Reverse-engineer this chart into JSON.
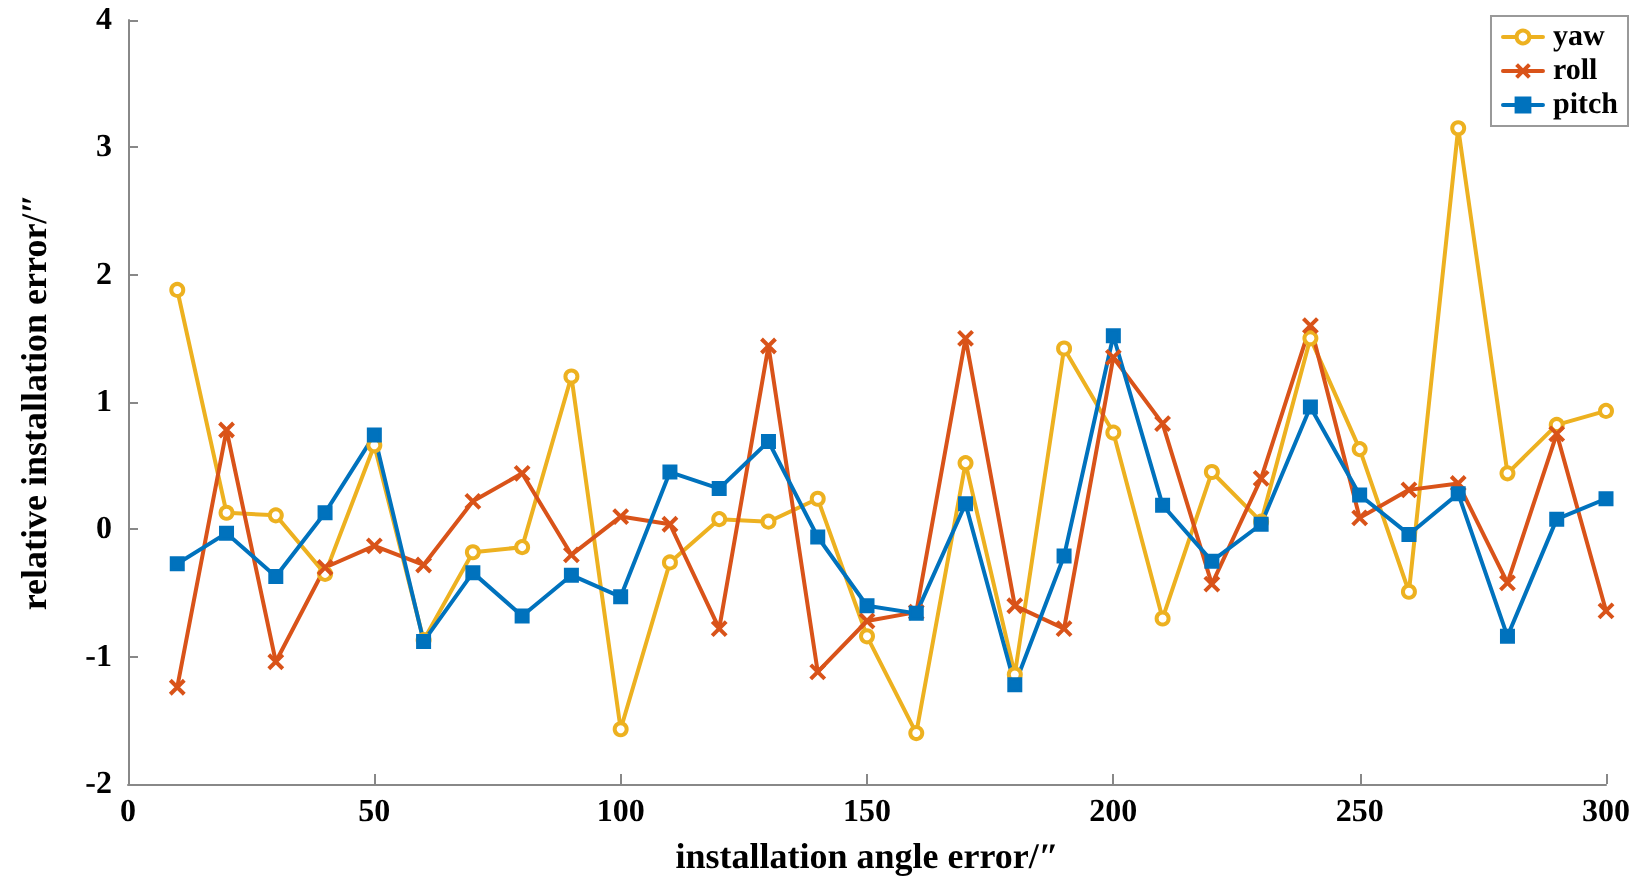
{
  "chart_data": {
    "type": "line",
    "xlabel": "installation angle error/″",
    "ylabel": "relative installation error/″",
    "x": [
      10,
      20,
      30,
      40,
      50,
      60,
      70,
      80,
      90,
      100,
      110,
      120,
      130,
      140,
      150,
      160,
      170,
      180,
      190,
      200,
      210,
      220,
      230,
      240,
      250,
      260,
      270,
      280,
      290,
      300
    ],
    "series": [
      {
        "name": "yaw",
        "color": "#edb120",
        "marker": "circle",
        "values": [
          1.88,
          0.13,
          0.11,
          -0.35,
          0.66,
          -0.87,
          -0.18,
          -0.14,
          1.2,
          -1.57,
          -0.26,
          0.08,
          0.06,
          0.24,
          -0.84,
          -1.6,
          0.52,
          -1.14,
          1.42,
          0.76,
          -0.7,
          0.45,
          0.06,
          1.5,
          0.63,
          -0.49,
          3.15,
          0.44,
          0.82,
          0.93
        ]
      },
      {
        "name": "roll",
        "color": "#d95319",
        "marker": "cross",
        "values": [
          -1.24,
          0.78,
          -1.04,
          -0.3,
          -0.13,
          -0.28,
          0.22,
          0.44,
          -0.2,
          0.1,
          0.04,
          -0.78,
          1.44,
          -1.12,
          -0.72,
          -0.65,
          1.5,
          -0.6,
          -0.78,
          1.35,
          0.83,
          -0.43,
          0.4,
          1.6,
          0.09,
          0.31,
          0.36,
          -0.42,
          0.75,
          -0.64
        ]
      },
      {
        "name": "pitch",
        "color": "#0072bd",
        "marker": "square",
        "values": [
          -0.27,
          -0.03,
          -0.37,
          0.13,
          0.74,
          -0.88,
          -0.34,
          -0.68,
          -0.36,
          -0.53,
          0.45,
          0.32,
          0.69,
          -0.06,
          -0.6,
          -0.66,
          0.2,
          -1.22,
          -0.21,
          1.52,
          0.19,
          -0.25,
          0.04,
          0.96,
          0.27,
          -0.04,
          0.28,
          -0.84,
          0.08,
          0.24
        ]
      }
    ],
    "xlim": [
      0,
      300
    ],
    "xticks": [
      0,
      50,
      100,
      150,
      200,
      250,
      300
    ],
    "ylim": [
      -2,
      4
    ],
    "yticks": [
      -2,
      -1,
      0,
      1,
      2,
      3,
      4
    ],
    "grid": false,
    "legend": "top right",
    "line_style": "solid"
  }
}
